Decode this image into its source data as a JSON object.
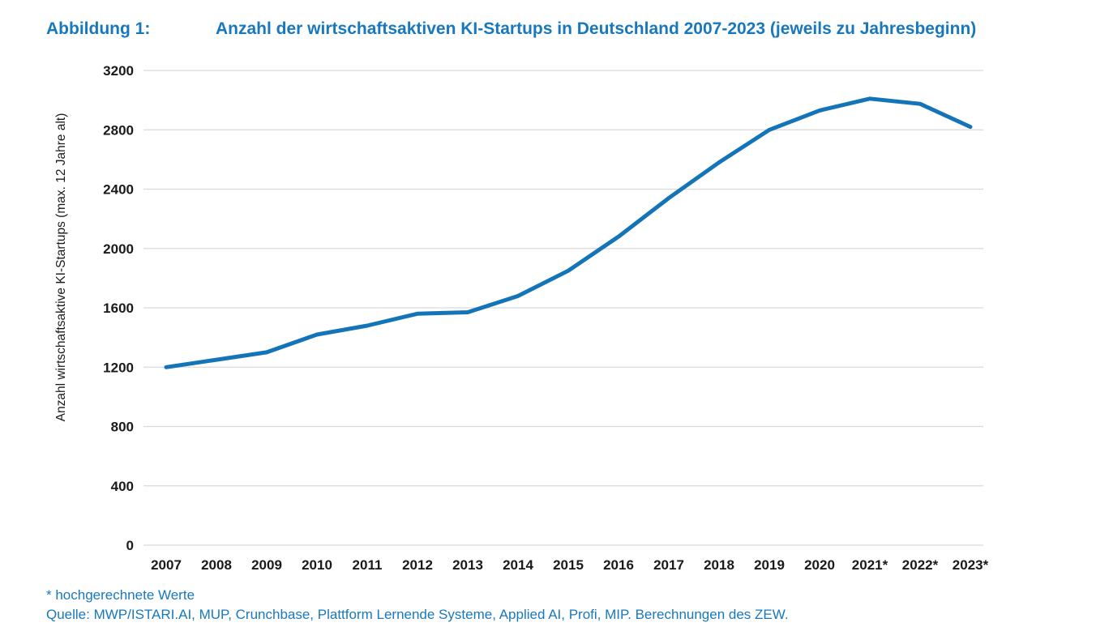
{
  "figure": {
    "label": "Abbildung 1:",
    "title": "Anzahl der wirtschaftsaktiven KI-Startups in Deutschland 2007-2023 (jeweils zu Jahresbeginn)"
  },
  "footnotes": {
    "asterisk_note": "* hochgerechnete Werte",
    "source": "Quelle: MWP/ISTARI.AI, MUP, Crunchbase, Plattform Lernende Systeme, Applied AI, Profi, MIP. Berechnungen des ZEW."
  },
  "colors": {
    "accent_blue": "#1878BE",
    "line_blue": "#1474B8",
    "grid_gray": "#D9D9D9",
    "tick_text": "#1a1a1a"
  },
  "chart_data": {
    "type": "line",
    "title": "Anzahl der wirtschaftsaktiven KI-Startups in Deutschland 2007-2023 (jeweils zu Jahresbeginn)",
    "x": [
      "2007",
      "2008",
      "2009",
      "2010",
      "2011",
      "2012",
      "2013",
      "2014",
      "2015",
      "2016",
      "2017",
      "2018",
      "2019",
      "2020",
      "2021*",
      "2022*",
      "2023*"
    ],
    "series": [
      {
        "name": "Anzahl wirtschaftsaktive KI-Startups",
        "values": [
          1200,
          1250,
          1300,
          1420,
          1480,
          1560,
          1570,
          1680,
          1850,
          2080,
          2340,
          2580,
          2800,
          2930,
          3010,
          2975,
          2820
        ]
      }
    ],
    "xlabel": "",
    "ylabel": "Anzahl wirtschaftsaktive KI-Startups (max. 12 Jahre alt)",
    "ylim": [
      0,
      3200
    ],
    "ytick_step": 400,
    "yticks": [
      0,
      400,
      800,
      1200,
      1600,
      2000,
      2400,
      2800,
      3200
    ],
    "grid": true,
    "legend": false
  }
}
